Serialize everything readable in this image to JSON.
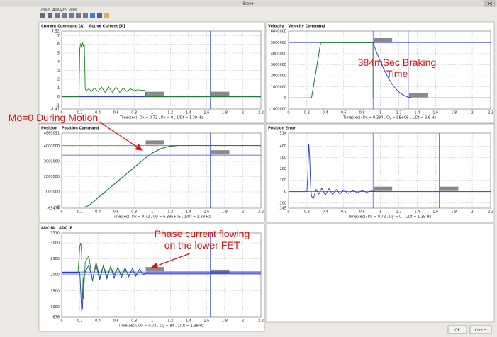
{
  "window": {
    "title": "Scope"
  },
  "menu": [
    "Zoom",
    "Analyze",
    "Tools"
  ],
  "buttons": [
    "OK",
    "Cancel"
  ],
  "annotations": [
    "384mSec Braking Time",
    "Mo=0 During Motion",
    "Phase current flowing on the lower FET"
  ],
  "chart_data": [
    {
      "type": "line",
      "footer": "Time(sec): Dx = 0.72 , Dy = 0 , 1/Dt = 1.39 Hz",
      "x": [
        0,
        0.18,
        0.19,
        0.2,
        0.21,
        0.22,
        0.23,
        0.24,
        0.25,
        0.26,
        0.27,
        0.3,
        0.33,
        0.36,
        0.4,
        0.44,
        0.48,
        0.52,
        0.56,
        0.6,
        0.64,
        0.68,
        0.72,
        0.76,
        0.8,
        0.84,
        0.88,
        0.92,
        0.93,
        1.2,
        1.6,
        2.0,
        2.2
      ],
      "series": [
        {
          "name": "Current Command [A]",
          "color": "#2233dd",
          "values": [
            0,
            0,
            0,
            0,
            0,
            0,
            0,
            0,
            0,
            0,
            0,
            0,
            0,
            0,
            0,
            0,
            0,
            0,
            0,
            0,
            0,
            0,
            0,
            0,
            0,
            0,
            0,
            0,
            0,
            0,
            0,
            0,
            0
          ]
        },
        {
          "name": "Active Current [A]",
          "color": "#1a8a1a",
          "values": [
            0,
            0,
            0,
            5.5,
            6.1,
            5.6,
            6.2,
            5.8,
            6.0,
            0.9,
            0.7,
            0.9,
            0.6,
            1.0,
            0.6,
            1.1,
            0.5,
            1.1,
            0.5,
            1.1,
            0.5,
            1.0,
            0.6,
            0.9,
            0.7,
            0.8,
            0.75,
            0.75,
            0,
            0,
            0,
            0,
            0
          ]
        }
      ],
      "xlim": [
        0,
        2.2
      ],
      "xticks": [
        0,
        0.2,
        0.4,
        0.6,
        0.8,
        1,
        1.2,
        1.4,
        1.6,
        1.8,
        2,
        2.2
      ],
      "ylim": [
        -1.41,
        7.52
      ],
      "yticks": [
        -1.41,
        -1,
        0,
        1,
        2,
        3,
        4,
        5,
        6,
        7,
        7.52
      ],
      "cursor_x": [
        0.92,
        1.64
      ],
      "cursor_y": [
        0,
        0
      ],
      "grid": true
    },
    {
      "type": "line",
      "footer": "Time(sec): Dx = 0.384 , Dy = 5E+06 , 1/Dt = 2.6 Hz",
      "x": [
        0,
        0.25,
        0.3,
        0.35,
        0.4,
        0.92,
        0.921,
        0.95,
        1.0,
        1.05,
        1.1,
        1.15,
        1.2,
        1.25,
        1.3,
        1.35,
        1.5,
        2.2
      ],
      "series": [
        {
          "name": "Velocity",
          "color": "#2233dd",
          "values": [
            0,
            0,
            2500000,
            5000000,
            5000000,
            5000000,
            5000000,
            4300000,
            3300000,
            2400000,
            1600000,
            1000000,
            550000,
            250000,
            80000,
            0,
            0,
            0
          ]
        },
        {
          "name": "Velocity Command",
          "color": "#1a8a1a",
          "values": [
            0,
            0,
            2500000,
            5000000,
            5000000,
            5000000,
            0,
            0,
            0,
            0,
            0,
            0,
            0,
            0,
            0,
            0,
            0,
            0
          ]
        }
      ],
      "xlim": [
        0,
        2.2
      ],
      "xticks": [
        0,
        0.2,
        0.4,
        0.6,
        0.8,
        1,
        1.2,
        1.4,
        1.6,
        1.8,
        2,
        2.2
      ],
      "ylim": [
        -1000000,
        6040000
      ],
      "yticks": [
        -1000000,
        0,
        1000000,
        2000000,
        3000000,
        4000000,
        5000000,
        6040000
      ],
      "cursor_x": [
        0.92,
        1.304
      ],
      "cursor_y": [
        5000000,
        0
      ],
      "grid": true
    },
    {
      "type": "line",
      "footer": "Time(sec): Dx = 0.72 , Dy = 6.39E+05 , 1/Dt = 1.39 Hz",
      "x": [
        0,
        0.2,
        0.25,
        0.3,
        0.35,
        0.4,
        0.6,
        0.8,
        0.92,
        1.0,
        1.1,
        1.2,
        1.3,
        1.4,
        2.2
      ],
      "series": [
        {
          "name": "Position",
          "color": "#2233dd",
          "values": [
            0,
            0,
            0,
            100000,
            350000,
            600000,
            1600000,
            2600000,
            3200000,
            3550000,
            3850000,
            4000000,
            4050000,
            4050000,
            4050000
          ]
        },
        {
          "name": "Position Command",
          "color": "#1a8a1a",
          "values": [
            0,
            0,
            0,
            110000,
            360000,
            610000,
            1610000,
            2610000,
            3210000,
            3560000,
            3860000,
            4010000,
            4050000,
            4050000,
            4050000
          ]
        }
      ],
      "xlim": [
        0,
        2.2
      ],
      "xticks": [
        0,
        0.2,
        0.4,
        0.6,
        0.8,
        1,
        1.2,
        1.4,
        1.6,
        1.8,
        2,
        2.2
      ],
      "ylim": [
        -69474,
        4860091
      ],
      "yticks": [
        -69474,
        0,
        1000000,
        2000000,
        3000000,
        4000000,
        4860091
      ],
      "cursor_x": [
        0.92,
        1.64
      ],
      "cursor_y": [
        4050000,
        3411000
      ],
      "grid": true
    },
    {
      "type": "line",
      "footer": "Time(sec): Dx = 0.72 , Dy = 0 , 1/Dt = 1.39 Hz",
      "x": [
        0,
        0.2,
        0.21,
        0.22,
        0.23,
        0.24,
        0.25,
        0.27,
        0.3,
        0.33,
        0.36,
        0.4,
        0.44,
        0.48,
        0.52,
        0.56,
        0.6,
        0.65,
        0.7,
        0.75,
        0.8,
        0.85,
        0.9,
        0.95,
        2.2
      ],
      "series": [
        {
          "name": "Position Error",
          "color": "#2233dd",
          "values": [
            0,
            0,
            150,
            420,
            300,
            50,
            -40,
            -60,
            20,
            -20,
            30,
            -30,
            25,
            -25,
            20,
            -20,
            15,
            -15,
            10,
            -10,
            8,
            -5,
            5,
            0,
            0
          ]
        }
      ],
      "xlim": [
        0,
        2.2
      ],
      "xticks": [
        0,
        0.2,
        0.4,
        0.6,
        0.8,
        1,
        1.2,
        1.4,
        1.6,
        1.8,
        2,
        2.2
      ],
      "ylim": [
        -145,
        514
      ],
      "yticks": [
        -145,
        -100,
        0,
        100,
        200,
        300,
        400,
        514
      ],
      "cursor_x": [
        0.92,
        1.64
      ],
      "cursor_y": [
        0,
        0
      ],
      "grid": true
    },
    {
      "type": "line",
      "footer": "Time(sec): Dx = 0.72 , Dy = 84 , 1/Dt = 1.39 Hz",
      "x": [
        0,
        0.18,
        0.2,
        0.21,
        0.22,
        0.23,
        0.24,
        0.26,
        0.3,
        0.34,
        0.38,
        0.42,
        0.46,
        0.5,
        0.54,
        0.58,
        0.62,
        0.66,
        0.7,
        0.74,
        0.78,
        0.82,
        0.86,
        0.9,
        0.95,
        2.2
      ],
      "series": [
        {
          "name": "ADC IA",
          "color": "#2233dd",
          "values": [
            2080,
            2080,
            2080,
            1500,
            900,
            950,
            1900,
            2100,
            2300,
            1850,
            2300,
            1850,
            2280,
            1880,
            2260,
            1900,
            2240,
            1920,
            2220,
            1940,
            2200,
            1960,
            2180,
            2000,
            2090,
            2090
          ]
        },
        {
          "name": "ADC IB",
          "color": "#1a8a1a",
          "values": [
            2050,
            2050,
            2900,
            3000,
            2700,
            1300,
            1250,
            2400,
            2600,
            1800,
            2400,
            1900,
            2300,
            1950,
            2250,
            2000,
            2200,
            2000,
            2150,
            2000,
            2100,
            2020,
            2080,
            2030,
            2040,
            2040
          ]
        }
      ],
      "xlim": [
        0,
        2.2
      ],
      "xticks": [
        0,
        0.2,
        0.4,
        0.6,
        0.8,
        1,
        1.2,
        1.4,
        1.6,
        1.8,
        2,
        2.2
      ],
      "ylim": [
        676,
        3310
      ],
      "yticks": [
        676,
        1000,
        1500,
        2000,
        2500,
        3000,
        3310
      ],
      "cursor_x": [
        0.92,
        1.64
      ],
      "cursor_y": [
        2090,
        2006
      ],
      "grid": true
    }
  ]
}
